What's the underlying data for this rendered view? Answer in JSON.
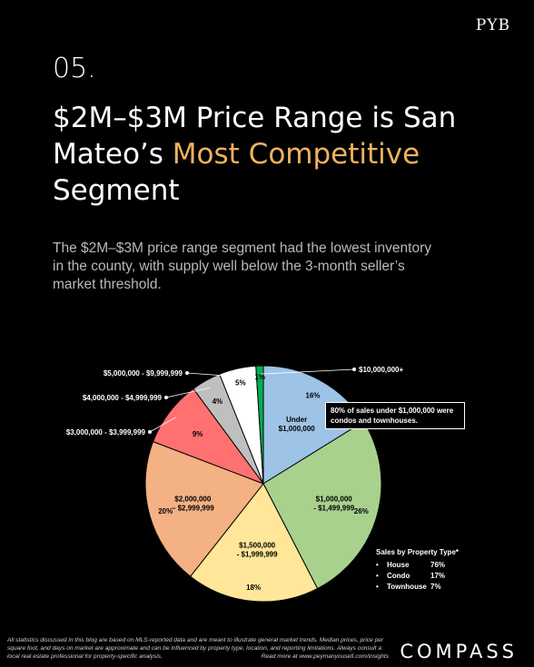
{
  "brand": "PYB",
  "header": {
    "number": "05.",
    "title_part1": "$2M–$3M Price Range is San Mateo’s ",
    "title_accent1": "Most Competitive",
    "title_part2": " Segment",
    "subtitle": "The $2M–$3M price range segment had the lowest inventory in the county, with supply well below the 3-month seller’s market threshold."
  },
  "chart_data": {
    "type": "pie",
    "slices": [
      {
        "label": "Under $1,000,000",
        "value": 16,
        "color": "#9dc3e6"
      },
      {
        "label": "$1,000,000 - $1,499,999",
        "value": 26,
        "color": "#a9d18e"
      },
      {
        "label": "$1,500,000 - $1,999,999",
        "value": 18,
        "color": "#ffe699"
      },
      {
        "label": "$2,000,000 – $2,999,999",
        "value": 20,
        "color": "#f4b183"
      },
      {
        "label": "$3,000,000 - $3,999,999",
        "value": 9,
        "color": "#ff7171"
      },
      {
        "label": "$4,000,000 - $4,999,999",
        "value": 4,
        "color": "#bfbfbf"
      },
      {
        "label": "$5,000,000 - $9,999,999",
        "value": 5,
        "color": "#ffffff"
      },
      {
        "label": "$10,000,000+",
        "value": 1,
        "color": "#00b050"
      }
    ],
    "percent_labels": [
      "16%",
      "26%",
      "18%",
      "20%",
      "9%",
      "4%",
      "5%",
      "1%"
    ],
    "outside_labels": [
      "$10,000,000+",
      "$5,000,000 - $9,999,999",
      "$4,000,000 - $4,999,999",
      "$3,000,000 - $3,999,999"
    ]
  },
  "callout": "80% of sales under $1,000,000 were condos and townhouses.",
  "legend": {
    "title": "Sales by Property Type*",
    "items": [
      {
        "bullet": "•",
        "name": "House",
        "pct": "76%"
      },
      {
        "bullet": "•",
        "name": "Condo",
        "pct": "17%"
      },
      {
        "bullet": "•",
        "name": "Townhouse",
        "pct": "7%"
      }
    ]
  },
  "footer": {
    "disclaimer": "All statistics discussed in this blog are based on MLS-reported data and are meant to illustrate general market trends. Median prices, price per square foot, and days on market are approximate and can be influenced by property type, location, and reporting limitations. Always consult a local real estate professional for property-specific analysis.",
    "read_more": "Read more at www.peymanyousefi.com/insights",
    "logo": "COMPASS"
  }
}
